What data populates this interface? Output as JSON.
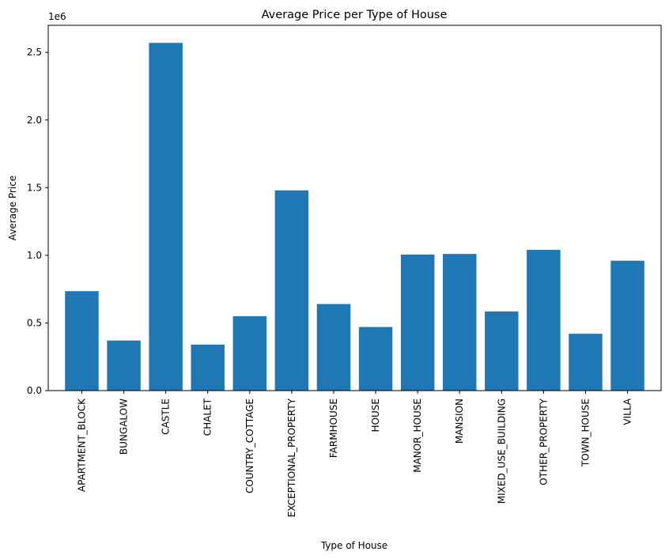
{
  "chart_data": {
    "type": "bar",
    "title": "Average Price per Type of House",
    "xlabel": "Type of House",
    "ylabel": "Average Price",
    "y_offset_text": "1e6",
    "categories": [
      "APARTMENT_BLOCK",
      "BUNGALOW",
      "CASTLE",
      "CHALET",
      "COUNTRY_COTTAGE",
      "EXCEPTIONAL_PROPERTY",
      "FARMHOUSE",
      "HOUSE",
      "MANOR_HOUSE",
      "MANSION",
      "MIXED_USE_BUILDING",
      "OTHER_PROPERTY",
      "TOWN_HOUSE",
      "VILLA"
    ],
    "values": [
      735000,
      370000,
      2570000,
      340000,
      550000,
      1480000,
      640000,
      470000,
      1005000,
      1010000,
      585000,
      1040000,
      420000,
      960000
    ],
    "ylim": [
      0,
      2700000
    ],
    "yticks": [
      0,
      500000,
      1000000,
      1500000,
      2000000,
      2500000
    ],
    "ytick_labels": [
      "0.0",
      "0.5",
      "1.0",
      "1.5",
      "2.0",
      "2.5"
    ],
    "bar_color": "#1f77b4",
    "grid": false,
    "legend": false
  }
}
